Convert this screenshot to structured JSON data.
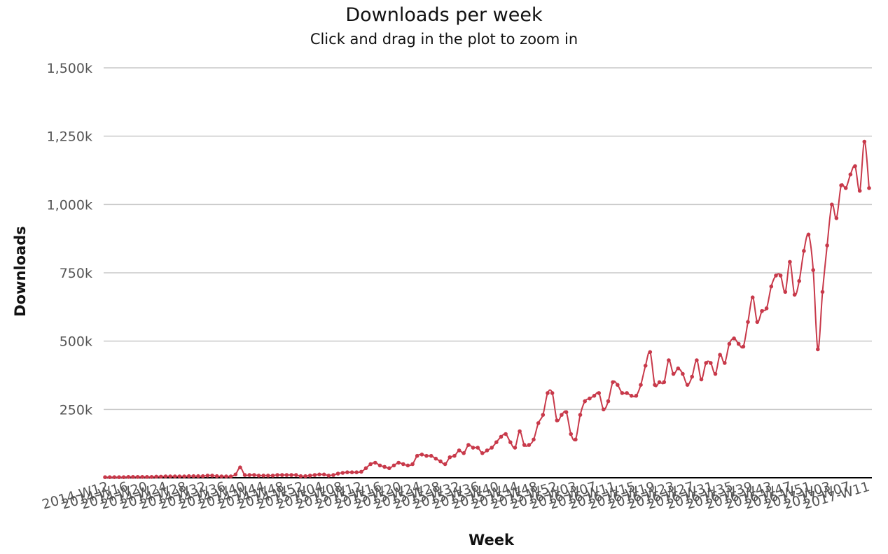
{
  "chart_data": {
    "type": "line",
    "title": "Downloads per week",
    "subtitle": "Click and drag in the plot to zoom in",
    "xlabel": "Week",
    "ylabel": "Downloads",
    "ylim": [
      0,
      1500000
    ],
    "yticks": [
      250000,
      500000,
      750000,
      1000000,
      1250000,
      1500000
    ],
    "ytick_labels": [
      "250k",
      "500k",
      "750k",
      "1,000k",
      "1,250k",
      "1,500k"
    ],
    "grid": true,
    "legend": "none",
    "colors": {
      "line": "#c8394a",
      "grid": "#c8c8c8",
      "axis": "#000000"
    },
    "xtick_labels": [
      "2014-W12",
      "2014-W16",
      "2014-W20",
      "2014-W24",
      "2014-W28",
      "2014-W32",
      "2014-W36",
      "2014-W40",
      "2014-W44",
      "2014-W48",
      "2014-W52",
      "2015-W04",
      "2015-W08",
      "2015-W12",
      "2015-W16",
      "2015-W20",
      "2015-W24",
      "2015-W28",
      "2015-W32",
      "2015-W36",
      "2015-W40",
      "2015-W44",
      "2015-W48",
      "2015-W52",
      "2016-W03",
      "2016-W07",
      "2016-W11",
      "2016-W15",
      "2016-W19",
      "2016-W23",
      "2016-W27",
      "2016-W31",
      "2016-W35",
      "2016-W39",
      "2016-W43",
      "2016-W47",
      "2016-W51",
      "2017-W03",
      "2017-W07",
      "2017-W11"
    ],
    "series": [
      {
        "values": [
          2000,
          2000,
          2000,
          2000,
          2000,
          3000,
          3000,
          3000,
          3000,
          3000,
          3000,
          4000,
          4000,
          5000,
          5000,
          5000,
          5000,
          5000,
          6000,
          6000,
          6000,
          6000,
          8000,
          8000,
          6000,
          5000,
          5000,
          5000,
          12000,
          38000,
          10000,
          10000,
          10000,
          8000,
          8000,
          8000,
          8000,
          10000,
          10000,
          10000,
          10000,
          10000,
          6000,
          6000,
          8000,
          10000,
          12000,
          12000,
          8000,
          10000,
          15000,
          18000,
          20000,
          20000,
          20000,
          22000,
          35000,
          50000,
          55000,
          45000,
          40000,
          35000,
          45000,
          55000,
          50000,
          45000,
          50000,
          80000,
          85000,
          80000,
          80000,
          70000,
          60000,
          50000,
          75000,
          80000,
          100000,
          90000,
          120000,
          110000,
          110000,
          90000,
          100000,
          110000,
          130000,
          150000,
          160000,
          130000,
          110000,
          170000,
          120000,
          120000,
          140000,
          200000,
          230000,
          310000,
          310000,
          210000,
          230000,
          240000,
          160000,
          140000,
          230000,
          280000,
          290000,
          300000,
          310000,
          250000,
          280000,
          350000,
          340000,
          310000,
          310000,
          300000,
          300000,
          340000,
          410000,
          460000,
          340000,
          350000,
          350000,
          430000,
          380000,
          400000,
          380000,
          340000,
          370000,
          430000,
          360000,
          420000,
          420000,
          380000,
          450000,
          420000,
          490000,
          510000,
          490000,
          480000,
          570000,
          660000,
          570000,
          610000,
          620000,
          700000,
          740000,
          740000,
          680000,
          790000,
          670000,
          720000,
          830000,
          890000,
          760000,
          470000,
          680000,
          850000,
          1000000,
          950000,
          1070000,
          1060000,
          1110000,
          1140000,
          1050000,
          1230000,
          1060000
        ]
      }
    ]
  }
}
